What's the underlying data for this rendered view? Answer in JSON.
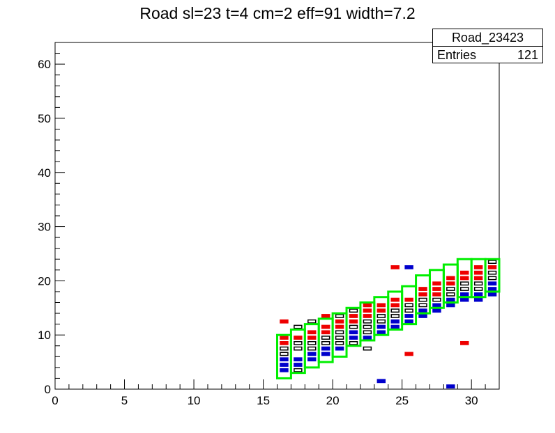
{
  "chart_data": {
    "type": "heatmap",
    "title": "Road sl=23 t=4 cm=2 eff=91 width=7.2",
    "xlim": [
      0,
      32
    ],
    "ylim": [
      0,
      64
    ],
    "x_ticks": [
      "0",
      "5",
      "10",
      "15",
      "20",
      "25",
      "30"
    ],
    "y_ticks": [
      "0",
      "10",
      "20",
      "30",
      "40",
      "50",
      "60"
    ],
    "grid": false,
    "stats_box": {
      "name": "Road_23423",
      "entries_label": "Entries",
      "entries_value": "121"
    },
    "colors": {
      "road_box": "#00ee00",
      "cell_red": "#ee0000",
      "cell_blue": "#0000cc",
      "cell_black": "#000000"
    },
    "road_boxes": [
      {
        "x": 16,
        "y0": 2,
        "y1": 10
      },
      {
        "x": 17,
        "y0": 3,
        "y1": 11
      },
      {
        "x": 18,
        "y0": 4,
        "y1": 12
      },
      {
        "x": 19,
        "y0": 5,
        "y1": 13
      },
      {
        "x": 20,
        "y0": 6,
        "y1": 14
      },
      {
        "x": 21,
        "y0": 8,
        "y1": 15
      },
      {
        "x": 22,
        "y0": 9,
        "y1": 16
      },
      {
        "x": 23,
        "y0": 10,
        "y1": 17
      },
      {
        "x": 24,
        "y0": 11,
        "y1": 18
      },
      {
        "x": 25,
        "y0": 12,
        "y1": 19
      },
      {
        "x": 26,
        "y0": 14,
        "y1": 21
      },
      {
        "x": 27,
        "y0": 15,
        "y1": 22
      },
      {
        "x": 28,
        "y0": 16,
        "y1": 23
      },
      {
        "x": 29,
        "y0": 17,
        "y1": 24
      },
      {
        "x": 30,
        "y0": 17,
        "y1": 24
      },
      {
        "x": 31,
        "y0": 18,
        "y1": 24
      }
    ],
    "cells": [
      {
        "x": 16,
        "y": 3,
        "c": "blue"
      },
      {
        "x": 16,
        "y": 4,
        "c": "blue"
      },
      {
        "x": 16,
        "y": 5,
        "c": "blue"
      },
      {
        "x": 16,
        "y": 6,
        "c": "black"
      },
      {
        "x": 16,
        "y": 7,
        "c": "black"
      },
      {
        "x": 16,
        "y": 8,
        "c": "red"
      },
      {
        "x": 16,
        "y": 9,
        "c": "red"
      },
      {
        "x": 16,
        "y": 12,
        "c": "red"
      },
      {
        "x": 17,
        "y": 3,
        "c": "black"
      },
      {
        "x": 17,
        "y": 4,
        "c": "blue"
      },
      {
        "x": 17,
        "y": 5,
        "c": "blue"
      },
      {
        "x": 17,
        "y": 7,
        "c": "black"
      },
      {
        "x": 17,
        "y": 8,
        "c": "black"
      },
      {
        "x": 17,
        "y": 9,
        "c": "red"
      },
      {
        "x": 17,
        "y": 11,
        "c": "black"
      },
      {
        "x": 18,
        "y": 5,
        "c": "blue"
      },
      {
        "x": 18,
        "y": 6,
        "c": "blue"
      },
      {
        "x": 18,
        "y": 7,
        "c": "black"
      },
      {
        "x": 18,
        "y": 8,
        "c": "black"
      },
      {
        "x": 18,
        "y": 9,
        "c": "red"
      },
      {
        "x": 18,
        "y": 10,
        "c": "red"
      },
      {
        "x": 18,
        "y": 12,
        "c": "black"
      },
      {
        "x": 19,
        "y": 6,
        "c": "blue"
      },
      {
        "x": 19,
        "y": 7,
        "c": "blue"
      },
      {
        "x": 19,
        "y": 8,
        "c": "black"
      },
      {
        "x": 19,
        "y": 9,
        "c": "black"
      },
      {
        "x": 19,
        "y": 10,
        "c": "red"
      },
      {
        "x": 19,
        "y": 11,
        "c": "red"
      },
      {
        "x": 19,
        "y": 13,
        "c": "red"
      },
      {
        "x": 20,
        "y": 7,
        "c": "blue"
      },
      {
        "x": 20,
        "y": 8,
        "c": "black"
      },
      {
        "x": 20,
        "y": 9,
        "c": "black"
      },
      {
        "x": 20,
        "y": 10,
        "c": "black"
      },
      {
        "x": 20,
        "y": 11,
        "c": "red"
      },
      {
        "x": 20,
        "y": 12,
        "c": "red"
      },
      {
        "x": 20,
        "y": 13,
        "c": "black"
      },
      {
        "x": 21,
        "y": 8,
        "c": "black"
      },
      {
        "x": 21,
        "y": 9,
        "c": "blue"
      },
      {
        "x": 21,
        "y": 10,
        "c": "blue"
      },
      {
        "x": 21,
        "y": 11,
        "c": "black"
      },
      {
        "x": 21,
        "y": 12,
        "c": "red"
      },
      {
        "x": 21,
        "y": 13,
        "c": "red"
      },
      {
        "x": 21,
        "y": 14,
        "c": "black"
      },
      {
        "x": 22,
        "y": 7,
        "c": "black"
      },
      {
        "x": 22,
        "y": 9,
        "c": "blue"
      },
      {
        "x": 22,
        "y": 10,
        "c": "black"
      },
      {
        "x": 22,
        "y": 11,
        "c": "black"
      },
      {
        "x": 22,
        "y": 12,
        "c": "black"
      },
      {
        "x": 22,
        "y": 13,
        "c": "red"
      },
      {
        "x": 22,
        "y": 14,
        "c": "red"
      },
      {
        "x": 22,
        "y": 15,
        "c": "red"
      },
      {
        "x": 23,
        "y": 10,
        "c": "blue"
      },
      {
        "x": 23,
        "y": 11,
        "c": "blue"
      },
      {
        "x": 23,
        "y": 12,
        "c": "black"
      },
      {
        "x": 23,
        "y": 13,
        "c": "black"
      },
      {
        "x": 23,
        "y": 14,
        "c": "red"
      },
      {
        "x": 23,
        "y": 15,
        "c": "red"
      },
      {
        "x": 23,
        "y": 1,
        "c": "blue"
      },
      {
        "x": 24,
        "y": 11,
        "c": "blue"
      },
      {
        "x": 24,
        "y": 12,
        "c": "blue"
      },
      {
        "x": 24,
        "y": 13,
        "c": "black"
      },
      {
        "x": 24,
        "y": 14,
        "c": "black"
      },
      {
        "x": 24,
        "y": 15,
        "c": "red"
      },
      {
        "x": 24,
        "y": 16,
        "c": "red"
      },
      {
        "x": 24,
        "y": 22,
        "c": "red"
      },
      {
        "x": 25,
        "y": 12,
        "c": "blue"
      },
      {
        "x": 25,
        "y": 13,
        "c": "blue"
      },
      {
        "x": 25,
        "y": 14,
        "c": "black"
      },
      {
        "x": 25,
        "y": 15,
        "c": "black"
      },
      {
        "x": 25,
        "y": 16,
        "c": "red"
      },
      {
        "x": 25,
        "y": 6,
        "c": "red"
      },
      {
        "x": 25,
        "y": 22,
        "c": "blue"
      },
      {
        "x": 26,
        "y": 13,
        "c": "blue"
      },
      {
        "x": 26,
        "y": 14,
        "c": "blue"
      },
      {
        "x": 26,
        "y": 15,
        "c": "black"
      },
      {
        "x": 26,
        "y": 16,
        "c": "black"
      },
      {
        "x": 26,
        "y": 17,
        "c": "red"
      },
      {
        "x": 26,
        "y": 18,
        "c": "red"
      },
      {
        "x": 27,
        "y": 14,
        "c": "blue"
      },
      {
        "x": 27,
        "y": 15,
        "c": "blue"
      },
      {
        "x": 27,
        "y": 16,
        "c": "black"
      },
      {
        "x": 27,
        "y": 17,
        "c": "red"
      },
      {
        "x": 27,
        "y": 18,
        "c": "red"
      },
      {
        "x": 27,
        "y": 19,
        "c": "red"
      },
      {
        "x": 28,
        "y": 15,
        "c": "blue"
      },
      {
        "x": 28,
        "y": 16,
        "c": "blue"
      },
      {
        "x": 28,
        "y": 17,
        "c": "black"
      },
      {
        "x": 28,
        "y": 18,
        "c": "black"
      },
      {
        "x": 28,
        "y": 19,
        "c": "red"
      },
      {
        "x": 28,
        "y": 20,
        "c": "red"
      },
      {
        "x": 28,
        "y": 0,
        "c": "blue"
      },
      {
        "x": 29,
        "y": 8,
        "c": "red"
      },
      {
        "x": 29,
        "y": 16,
        "c": "blue"
      },
      {
        "x": 29,
        "y": 17,
        "c": "blue"
      },
      {
        "x": 29,
        "y": 18,
        "c": "black"
      },
      {
        "x": 29,
        "y": 19,
        "c": "black"
      },
      {
        "x": 29,
        "y": 20,
        "c": "red"
      },
      {
        "x": 29,
        "y": 21,
        "c": "red"
      },
      {
        "x": 30,
        "y": 16,
        "c": "blue"
      },
      {
        "x": 30,
        "y": 17,
        "c": "blue"
      },
      {
        "x": 30,
        "y": 18,
        "c": "black"
      },
      {
        "x": 30,
        "y": 19,
        "c": "black"
      },
      {
        "x": 30,
        "y": 20,
        "c": "red"
      },
      {
        "x": 30,
        "y": 21,
        "c": "red"
      },
      {
        "x": 30,
        "y": 22,
        "c": "red"
      },
      {
        "x": 31,
        "y": 17,
        "c": "blue"
      },
      {
        "x": 31,
        "y": 18,
        "c": "blue"
      },
      {
        "x": 31,
        "y": 19,
        "c": "blue"
      },
      {
        "x": 31,
        "y": 20,
        "c": "black"
      },
      {
        "x": 31,
        "y": 21,
        "c": "black"
      },
      {
        "x": 31,
        "y": 22,
        "c": "red"
      },
      {
        "x": 31,
        "y": 23,
        "c": "black"
      }
    ]
  }
}
